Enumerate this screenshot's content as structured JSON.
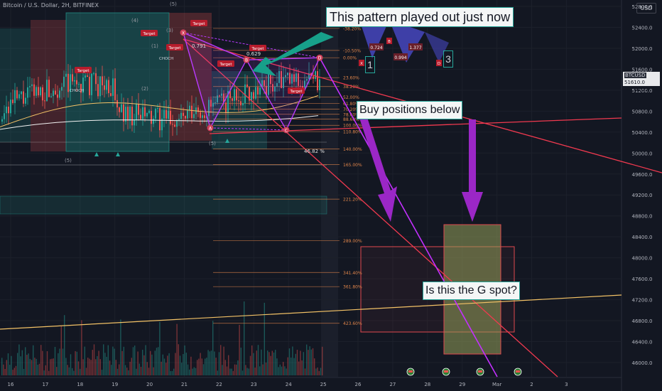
{
  "header": {
    "symbol_line": "Bitcoin / U.S. Dollar, 2H, BITFINEX",
    "currency": "USD"
  },
  "price_tag": {
    "symbol": "BTCUSD",
    "price": "51610.0",
    "countdown": "02:27"
  },
  "annotations": {
    "pattern_note": "This pattern played out just now",
    "buy_note": "Buy positions below",
    "g_spot_note": "Is this the G spot?",
    "point_1": "1",
    "point_3": "3"
  },
  "mini_pattern": {
    "labels": [
      "X",
      "B",
      "D"
    ],
    "ratios": [
      "0.724",
      "0.994",
      "1.377"
    ]
  },
  "colors": {
    "background": "#131722",
    "up": "#26a69a",
    "down": "#ef5350",
    "pattern": "#b93aff",
    "fib": "#e0854a",
    "trendline": "#f0394f",
    "long_trend": "#f3c266",
    "note_border": "#26a69a",
    "arrow_teal": "#17a08a",
    "arrow_purple": "#9b27c6"
  },
  "chart_data": {
    "type": "candlestick",
    "title": "",
    "x_ticks": [
      "16",
      "17",
      "18",
      "19",
      "20",
      "21",
      "22",
      "23",
      "24",
      "25",
      "26",
      "27",
      "28",
      "29",
      "Mar",
      "2",
      "3"
    ],
    "y_ticks": [
      52800,
      52400,
      52000,
      51600,
      51200,
      50800,
      50400,
      50000,
      49600,
      49200,
      48800,
      48400,
      48000,
      47600,
      47200,
      46800,
      46400,
      46000
    ],
    "ylim": [
      45900,
      52950
    ],
    "last_price": 51610,
    "fib_levels": [
      {
        "label": "-38.20%",
        "price": 52380
      },
      {
        "label": "-10.50%",
        "price": 51960
      },
      {
        "label": "0.00%",
        "price": 51820
      },
      {
        "label": "23.60%",
        "price": 51440
      },
      {
        "label": "38.20%",
        "price": 51270
      },
      {
        "label": "52.00%",
        "price": 51070
      },
      {
        "label": "61.80%",
        "price": 50950
      },
      {
        "label": "70.20%",
        "price": 50840
      },
      {
        "label": "78.60%",
        "price": 50740
      },
      {
        "label": "88.60%",
        "price": 50650
      },
      {
        "label": "100.00%",
        "price": 50530
      },
      {
        "label": "110.80%",
        "price": 50410
      },
      {
        "label": "140.00%",
        "price": 50080
      },
      {
        "label": "165.00%",
        "price": 49780
      },
      {
        "label": "221.20%",
        "price": 49120
      },
      {
        "label": "289.00%",
        "price": 48330
      },
      {
        "label": "341.40%",
        "price": 47720
      },
      {
        "label": "361.80%",
        "price": 47450
      },
      {
        "label": "423.60%",
        "price": 46750
      }
    ],
    "harmonic_pattern": {
      "points": [
        {
          "label": "X",
          "price": 52300
        },
        {
          "label": "A",
          "price": 50480
        },
        {
          "label": "B",
          "price": 51780
        },
        {
          "label": "C",
          "price": 50440
        },
        {
          "label": "D",
          "price": 51820
        }
      ],
      "ratios": [
        "0.791",
        "0.629",
        "46.82 %"
      ]
    },
    "marker_labels": [
      "Target",
      "CHOCH",
      "(5)",
      "(3)",
      "(4)",
      "(1)",
      "(2)",
      "5",
      "4",
      "3"
    ]
  }
}
